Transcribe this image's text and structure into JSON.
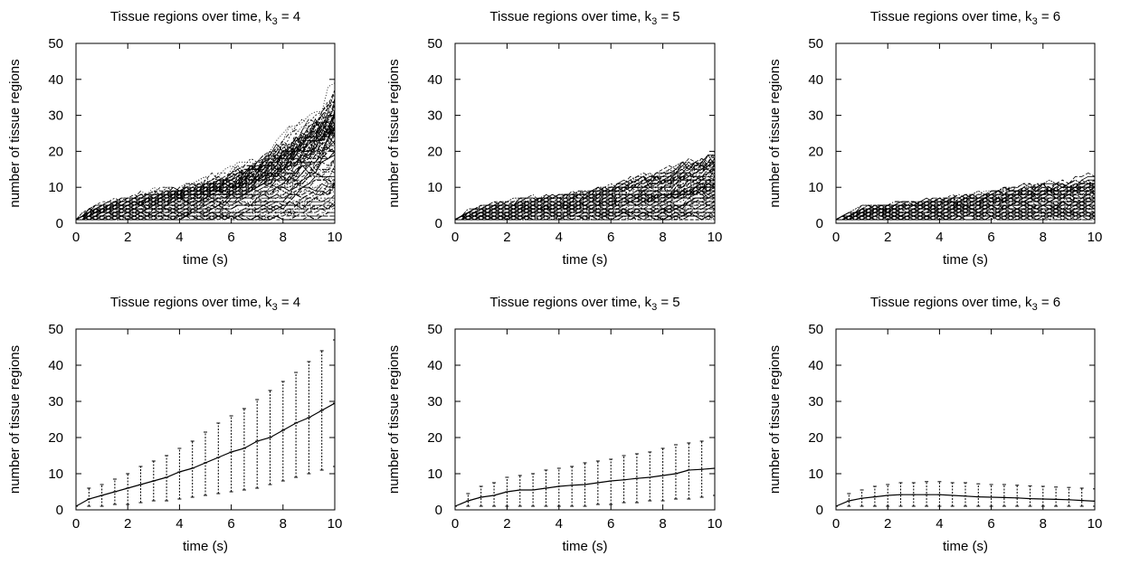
{
  "chart_data": [
    {
      "type": "line",
      "title_main": "Tissue regions over time, k",
      "title_sub": "3",
      "title_tail": " = 4",
      "xlabel": "time (s)",
      "ylabel": "number of tissue regions",
      "xlim": [
        0,
        10
      ],
      "ylim": [
        0,
        50
      ],
      "xticks": [
        0,
        2,
        4,
        6,
        8,
        10
      ],
      "yticks": [
        0,
        10,
        20,
        30,
        40,
        50
      ],
      "grid": false,
      "x": [
        0,
        0.5,
        1,
        1.5,
        2,
        2.5,
        3,
        3.5,
        4,
        4.5,
        5,
        5.5,
        6,
        6.5,
        7,
        7.5,
        8,
        8.5,
        9,
        9.5,
        10
      ],
      "band_low": [
        1,
        1,
        1,
        1,
        1,
        1,
        1,
        1,
        1,
        1,
        1,
        1,
        1,
        1,
        1,
        1,
        1,
        1,
        1,
        1,
        1
      ],
      "band_high": [
        1,
        6,
        7,
        8,
        9,
        10,
        11,
        12,
        13,
        14,
        15,
        17,
        19,
        21,
        24,
        27,
        30,
        34,
        38,
        43,
        49
      ],
      "trajectory_count": 100
    },
    {
      "type": "line",
      "title_main": "Tissue regions over time, k",
      "title_sub": "3",
      "title_tail": " = 5",
      "xlabel": "time (s)",
      "ylabel": "number of tissue regions",
      "xlim": [
        0,
        10
      ],
      "ylim": [
        0,
        50
      ],
      "xticks": [
        0,
        2,
        4,
        6,
        8,
        10
      ],
      "yticks": [
        0,
        10,
        20,
        30,
        40,
        50
      ],
      "grid": false,
      "x": [
        0,
        0.5,
        1,
        1.5,
        2,
        2.5,
        3,
        3.5,
        4,
        4.5,
        5,
        5.5,
        6,
        6.5,
        7,
        7.5,
        8,
        8.5,
        9,
        9.5,
        10
      ],
      "band_low": [
        1,
        1,
        1,
        1,
        1,
        1,
        1,
        1,
        1,
        1,
        1,
        1,
        1,
        1,
        1,
        1,
        1,
        1,
        1,
        1,
        1
      ],
      "band_high": [
        1,
        5,
        6,
        7,
        7,
        8,
        8,
        9,
        9,
        10,
        11,
        12,
        13,
        14,
        15,
        16,
        17,
        19,
        21,
        23,
        25
      ],
      "trajectory_count": 100
    },
    {
      "type": "line",
      "title_main": "Tissue regions over time, k",
      "title_sub": "3",
      "title_tail": " = 6",
      "xlabel": "time (s)",
      "ylabel": "number of tissue regions",
      "xlim": [
        0,
        10
      ],
      "ylim": [
        0,
        50
      ],
      "xticks": [
        0,
        2,
        4,
        6,
        8,
        10
      ],
      "yticks": [
        0,
        10,
        20,
        30,
        40,
        50
      ],
      "grid": false,
      "x": [
        0,
        0.5,
        1,
        1.5,
        2,
        2.5,
        3,
        3.5,
        4,
        4.5,
        5,
        5.5,
        6,
        6.5,
        7,
        7.5,
        8,
        8.5,
        9,
        9.5,
        10
      ],
      "band_low": [
        1,
        1,
        1,
        1,
        1,
        1,
        1,
        1,
        1,
        1,
        1,
        1,
        1,
        1,
        1,
        1,
        1,
        1,
        1,
        1,
        1
      ],
      "band_high": [
        1,
        4,
        5,
        6,
        6,
        7,
        7,
        8,
        8,
        9,
        9,
        10,
        11,
        12,
        12,
        13,
        13,
        13,
        14,
        15,
        15
      ],
      "trajectory_count": 100
    },
    {
      "type": "line",
      "error_bars": true,
      "title_main": "Tissue regions over time, k",
      "title_sub": "3",
      "title_tail": " = 4",
      "xlabel": "time (s)",
      "ylabel": "number of tissue regions",
      "xlim": [
        0,
        10
      ],
      "ylim": [
        0,
        50
      ],
      "xticks": [
        0,
        2,
        4,
        6,
        8,
        10
      ],
      "yticks": [
        0,
        10,
        20,
        30,
        40,
        50
      ],
      "grid": false,
      "x": [
        0,
        0.5,
        1,
        1.5,
        2,
        2.5,
        3,
        3.5,
        4,
        4.5,
        5,
        5.5,
        6,
        6.5,
        7,
        7.5,
        8,
        8.5,
        9,
        9.5,
        10
      ],
      "mean": [
        1,
        3,
        4,
        5,
        6,
        7,
        8,
        9,
        10.5,
        11.5,
        13,
        14.5,
        16,
        17,
        19,
        20,
        22,
        24,
        25.5,
        27.5,
        29.5
      ],
      "err_low": [
        1,
        1,
        1,
        1.5,
        1.5,
        2,
        2.5,
        2.5,
        3,
        3.5,
        4,
        4.5,
        5,
        5.5,
        6,
        7,
        8,
        9,
        10,
        11,
        12
      ],
      "err_high": [
        1,
        6,
        7,
        8.5,
        10,
        12,
        13.5,
        15,
        17,
        19,
        21.5,
        24,
        26,
        28,
        30.5,
        33,
        35.5,
        38,
        41,
        44,
        47
      ]
    },
    {
      "type": "line",
      "error_bars": true,
      "title_main": "Tissue regions over time, k",
      "title_sub": "3",
      "title_tail": " = 5",
      "xlabel": "time (s)",
      "ylabel": "number of tissue regions",
      "xlim": [
        0,
        10
      ],
      "ylim": [
        0,
        50
      ],
      "xticks": [
        0,
        2,
        4,
        6,
        8,
        10
      ],
      "yticks": [
        0,
        10,
        20,
        30,
        40,
        50
      ],
      "grid": false,
      "x": [
        0,
        0.5,
        1,
        1.5,
        2,
        2.5,
        3,
        3.5,
        4,
        4.5,
        5,
        5.5,
        6,
        6.5,
        7,
        7.5,
        8,
        8.5,
        9,
        9.5,
        10
      ],
      "mean": [
        1,
        2.5,
        3.5,
        4,
        5,
        5.5,
        5.5,
        6,
        6.5,
        6.8,
        7,
        7.5,
        8,
        8.3,
        8.7,
        9,
        9.5,
        10,
        11,
        11.2,
        11.5
      ],
      "err_low": [
        1,
        1,
        1,
        1,
        1,
        1,
        1,
        1,
        1,
        1,
        1,
        1.5,
        1.5,
        2,
        2,
        2.5,
        2.5,
        3,
        3,
        3.5,
        4
      ],
      "err_high": [
        1,
        4.5,
        6.5,
        7.5,
        9,
        9.5,
        10,
        11,
        11.5,
        12,
        13,
        13.5,
        14,
        15,
        15.5,
        16,
        17,
        18,
        18.5,
        19,
        20
      ]
    },
    {
      "type": "line",
      "error_bars": true,
      "title_main": "Tissue regions over time, k",
      "title_sub": "3",
      "title_tail": " = 6",
      "xlabel": "time (s)",
      "ylabel": "number of tissue regions",
      "xlim": [
        0,
        10
      ],
      "ylim": [
        0,
        50
      ],
      "xticks": [
        0,
        2,
        4,
        6,
        8,
        10
      ],
      "yticks": [
        0,
        10,
        20,
        30,
        40,
        50
      ],
      "grid": false,
      "x": [
        0,
        0.5,
        1,
        1.5,
        2,
        2.5,
        3,
        3.5,
        4,
        4.5,
        5,
        5.5,
        6,
        6.5,
        7,
        7.5,
        8,
        8.5,
        9,
        9.5,
        10
      ],
      "mean": [
        1,
        2.5,
        3.2,
        3.6,
        4,
        4.2,
        4.2,
        4.2,
        4.2,
        4,
        3.8,
        3.6,
        3.5,
        3.4,
        3.3,
        3.1,
        3,
        2.9,
        2.8,
        2.6,
        2.4
      ],
      "err_low": [
        1,
        1,
        1,
        1,
        1,
        1,
        1,
        1,
        1,
        1,
        1,
        1,
        1,
        1,
        1,
        1,
        1,
        1,
        1,
        1,
        1
      ],
      "err_high": [
        1,
        4.5,
        5.5,
        6.5,
        7,
        7.5,
        7.5,
        7.8,
        7.8,
        7.5,
        7.5,
        7.2,
        7,
        7,
        6.8,
        6.6,
        6.5,
        6.3,
        6.2,
        6,
        5.8
      ]
    }
  ]
}
